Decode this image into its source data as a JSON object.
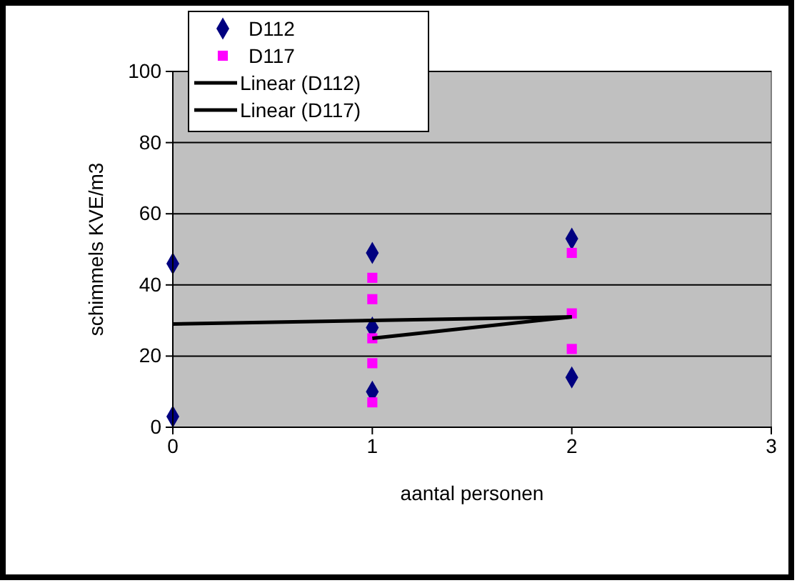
{
  "chart_data": {
    "type": "scatter",
    "xlabel": "aantal personen",
    "ylabel": "schimmels KVE/m3",
    "xlim": [
      0,
      3
    ],
    "xticks": [
      0,
      1,
      2,
      3
    ],
    "ylim": [
      0,
      100
    ],
    "yticks": [
      0,
      20,
      40,
      60,
      80,
      100
    ],
    "grid": "y",
    "legend": "top left",
    "series": [
      {
        "name": "D112",
        "marker": "diamond",
        "color": "#000080",
        "x": [
          0,
          0,
          1,
          1,
          1,
          2,
          2
        ],
        "values": [
          46,
          3,
          49,
          28,
          10,
          53,
          14
        ]
      },
      {
        "name": "D117",
        "marker": "square",
        "color": "#ff00ff",
        "x": [
          1,
          1,
          1,
          1,
          1,
          2,
          2,
          2
        ],
        "values": [
          42,
          36,
          25,
          18,
          7,
          49,
          32,
          22
        ]
      },
      {
        "name": "Linear (D112)",
        "type": "line",
        "color": "#000000",
        "x": [
          0,
          2
        ],
        "values": [
          29,
          31
        ]
      },
      {
        "name": "Linear (D117)",
        "type": "line",
        "color": "#000000",
        "x": [
          1,
          2
        ],
        "values": [
          25,
          31
        ]
      }
    ]
  }
}
